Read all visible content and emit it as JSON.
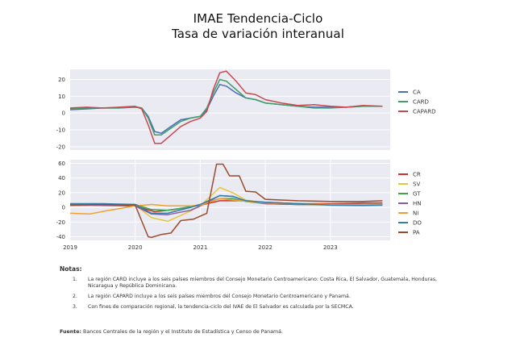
{
  "title": {
    "line1": "IMAE Tendencia-Ciclo",
    "line2": "Tasa de variación interanual"
  },
  "chart_data": [
    {
      "type": "line",
      "ylim": [
        -22,
        26
      ],
      "yticks": [
        20,
        10,
        0,
        -10,
        -20
      ],
      "xlim": [
        2019,
        2023.92
      ],
      "grid": true,
      "legend_position": "right",
      "series": [
        {
          "name": "CA",
          "color": "#4b6fb4",
          "x": [
            2019,
            2019.25,
            2019.5,
            2019.75,
            2020,
            2020.1,
            2020.2,
            2020.3,
            2020.4,
            2020.55,
            2020.7,
            2020.85,
            2021,
            2021.1,
            2021.2,
            2021.3,
            2021.4,
            2021.55,
            2021.7,
            2021.85,
            2022,
            2022.25,
            2022.5,
            2022.75,
            2023,
            2023.25,
            2023.5,
            2023.8
          ],
          "y": [
            2,
            2.5,
            3,
            3,
            3.5,
            3,
            -2,
            -11,
            -12,
            -8,
            -4,
            -3,
            -2,
            2,
            10,
            17,
            16,
            12,
            9,
            8,
            6,
            5,
            4,
            3.5,
            3.5,
            3.5,
            4,
            4
          ]
        },
        {
          "name": "CARD",
          "color": "#3f9e6b",
          "x": [
            2019,
            2019.25,
            2019.5,
            2019.75,
            2020,
            2020.1,
            2020.2,
            2020.3,
            2020.4,
            2020.55,
            2020.7,
            2020.85,
            2021,
            2021.1,
            2021.2,
            2021.3,
            2021.4,
            2021.55,
            2021.7,
            2021.85,
            2022,
            2022.25,
            2022.5,
            2022.75,
            2023,
            2023.25,
            2023.5,
            2023.8
          ],
          "y": [
            2.5,
            3,
            3,
            3,
            3.8,
            3,
            -3,
            -13,
            -13,
            -9,
            -5,
            -3,
            -2,
            3,
            12,
            20,
            19,
            14,
            9,
            8,
            6,
            5,
            4,
            3,
            3,
            3.5,
            4,
            4
          ]
        },
        {
          "name": "CAPARD",
          "color": "#c9484e",
          "x": [
            2019,
            2019.25,
            2019.5,
            2019.75,
            2020,
            2020.1,
            2020.2,
            2020.3,
            2020.4,
            2020.55,
            2020.7,
            2020.85,
            2021,
            2021.1,
            2021.2,
            2021.3,
            2021.4,
            2021.55,
            2021.7,
            2021.85,
            2022,
            2022.25,
            2022.5,
            2022.75,
            2023,
            2023.25,
            2023.5,
            2023.8
          ],
          "y": [
            3,
            3.5,
            3,
            3.5,
            4,
            2.5,
            -7,
            -18,
            -18,
            -13,
            -8,
            -5,
            -3,
            1,
            14,
            24,
            25,
            19,
            12,
            11,
            8,
            6,
            4.5,
            5,
            4,
            3.5,
            4.5,
            4
          ]
        }
      ]
    },
    {
      "type": "line",
      "ylim": [
        -45,
        65
      ],
      "yticks": [
        60,
        40,
        20,
        0,
        -20,
        -40
      ],
      "xlim": [
        2019,
        2023.92
      ],
      "xticks": [
        "2019",
        "2020",
        "2021",
        "2022",
        "2023"
      ],
      "xtick_values": [
        2019,
        2020,
        2021,
        2022,
        2023
      ],
      "grid": true,
      "legend_position": "right",
      "series": [
        {
          "name": "CR",
          "color": "#d42e2e",
          "x": [
            2019,
            2019.5,
            2020,
            2020.3,
            2020.6,
            2021,
            2021.3,
            2021.6,
            2022,
            2022.5,
            2023,
            2023.5,
            2023.8
          ],
          "y": [
            3,
            2.5,
            2,
            -6,
            -3,
            3,
            9,
            9,
            7,
            5,
            5,
            6,
            6
          ]
        },
        {
          "name": "SV",
          "color": "#e8c53a",
          "x": [
            2019,
            2019.5,
            2020,
            2020.25,
            2020.5,
            2020.85,
            2021,
            2021.3,
            2021.5,
            2021.7,
            2022,
            2022.5,
            2023,
            2023.5,
            2023.8
          ],
          "y": [
            2,
            3,
            3,
            -14,
            -19,
            -5,
            2,
            27,
            20,
            10,
            6,
            4,
            3,
            3,
            3
          ]
        },
        {
          "name": "GT",
          "color": "#3aa84a",
          "x": [
            2019,
            2019.5,
            2020,
            2020.25,
            2020.5,
            2020.85,
            2021,
            2021.3,
            2021.5,
            2021.7,
            2022,
            2022.5,
            2023,
            2023.5,
            2023.8
          ],
          "y": [
            4,
            4,
            4,
            -3,
            -4,
            1,
            4,
            12,
            12,
            8,
            5,
            4,
            4,
            4,
            4
          ]
        },
        {
          "name": "HN",
          "color": "#8a5aa8",
          "x": [
            2019,
            2019.5,
            2020,
            2020.25,
            2020.5,
            2020.85,
            2021,
            2021.3,
            2021.5,
            2021.7,
            2022,
            2022.5,
            2023,
            2023.5,
            2023.8
          ],
          "y": [
            3,
            3,
            2,
            -9,
            -10,
            -4,
            2,
            16,
            15,
            9,
            5,
            4,
            4,
            4,
            3.5
          ]
        },
        {
          "name": "NI",
          "color": "#f0a030",
          "x": [
            2019,
            2019.3,
            2019.6,
            2020,
            2020.25,
            2020.5,
            2020.85,
            2021,
            2021.3,
            2021.5,
            2022,
            2022.5,
            2023,
            2023.5,
            2023.8
          ],
          "y": [
            -8,
            -9,
            -4,
            2,
            4,
            2,
            2,
            3,
            12,
            10,
            6,
            5,
            4,
            4,
            4
          ]
        },
        {
          "name": "DO",
          "color": "#2f7fa8",
          "x": [
            2019,
            2019.5,
            2020,
            2020.25,
            2020.5,
            2020.85,
            2021,
            2021.3,
            2021.5,
            2021.7,
            2022,
            2022.5,
            2023,
            2023.5,
            2023.8
          ],
          "y": [
            5,
            5,
            4,
            -8,
            -8,
            0,
            4,
            16,
            15,
            9,
            7,
            5,
            3,
            2.5,
            3
          ]
        },
        {
          "name": "PA",
          "color": "#9c4a2a",
          "x": [
            2019,
            2019.5,
            2020,
            2020.2,
            2020.25,
            2020.4,
            2020.55,
            2020.7,
            2020.9,
            2021.1,
            2021.25,
            2021.35,
            2021.45,
            2021.6,
            2021.7,
            2021.85,
            2022,
            2022.5,
            2023,
            2023.5,
            2023.8
          ],
          "y": [
            3,
            4,
            3,
            -40,
            -41,
            -37,
            -35,
            -18,
            -16,
            -8,
            59,
            59,
            43,
            43,
            22,
            21,
            11,
            9,
            8,
            8,
            9
          ]
        }
      ]
    }
  ],
  "notes": {
    "heading": "Notas:",
    "items": [
      {
        "num": "1.",
        "text": "La región CARD incluye a los seis países miembros del Consejo Monetario Centroamericano: Costa Rica, El Salvador, Guatemala, Honduras, Nicaragua y República Dominicana."
      },
      {
        "num": "2.",
        "text": "La región CAPARD incluye a los seis países miembros del Consejo Monetario Centroamericano y Panamá."
      },
      {
        "num": "3.",
        "text": "Con fines de comparación regional, la tendencia-ciclo del IVAE de El Salvador es calculada por la SECMCA."
      }
    ]
  },
  "source": {
    "label": "Fuente:",
    "text": "Bancos Centrales de la región y el Instituto de Estadística y Censo de Panamá."
  }
}
